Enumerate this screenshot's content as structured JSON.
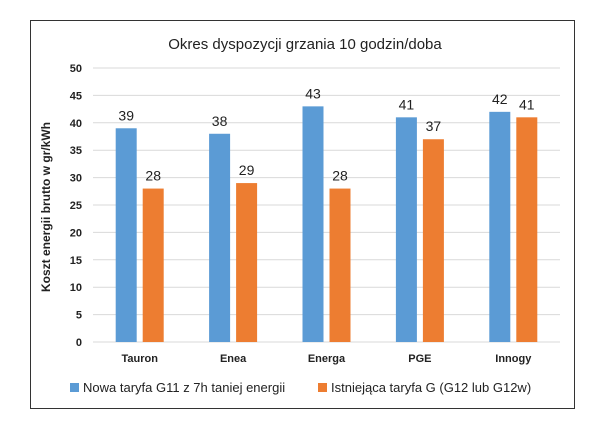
{
  "chart_data": {
    "type": "bar",
    "title": "Okres dyspozycji grzania 10 godzin/doba",
    "ylabel": "Koszt energii brutto w gr/kWh",
    "xlabel": "",
    "ylim": [
      0,
      50
    ],
    "yticks": [
      0,
      5,
      10,
      15,
      20,
      25,
      30,
      35,
      40,
      45,
      50
    ],
    "grid": true,
    "legend_position": "bottom",
    "categories": [
      "Tauron",
      "Enea",
      "Energa",
      "PGE",
      "Innogy"
    ],
    "series": [
      {
        "name": "Nowa taryfa G11 z 7h taniej energii",
        "color": "#5b9bd5",
        "values": [
          39,
          38,
          43,
          41,
          42
        ]
      },
      {
        "name": "Istniejąca taryfa G (G12 lub G12w)",
        "color": "#ed7d31",
        "values": [
          28,
          29,
          28,
          37,
          41
        ]
      }
    ]
  }
}
